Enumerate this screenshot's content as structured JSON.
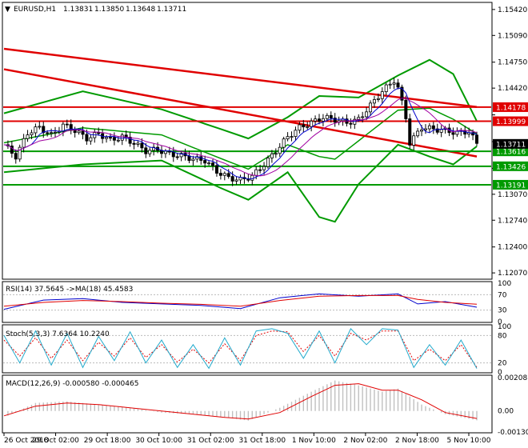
{
  "header": {
    "menu_glyph": "▼",
    "symbol": "EURUSD,H1",
    "open": "1.13831",
    "high": "1.13850",
    "low": "1.13648",
    "close": "1.13711"
  },
  "colors": {
    "price_level": "#e00000",
    "support_level": "#009a00",
    "bollinger": "#009a00",
    "trendline": "#e00000",
    "ma_fast": "#0000cc",
    "ma_mid": "#a000a0",
    "rsi_line": "#0000cc",
    "rsi_ma": "#e00000",
    "stoch_main": "#22aacc",
    "stoch_signal": "#e00000",
    "macd_hist": "#c0c0c0",
    "macd_signal": "#e00000",
    "current_price_box": "#000000"
  },
  "chart_data": [
    {
      "type": "candlestick",
      "panel": "main",
      "symbol": "EURUSD",
      "timeframe": "H1",
      "ylim": [
        1.12,
        1.155
      ],
      "y_ticks": [
        "1.15420",
        "1.15090",
        "1.14750",
        "1.14420",
        "1.14080",
        "1.13740",
        "1.13400",
        "1.13070",
        "1.12740",
        "1.12400",
        "1.12070"
      ],
      "x_ticks": [
        "26 Oct 2018",
        "29 Oct 02:00",
        "29 Oct 18:00",
        "30 Oct 10:00",
        "31 Oct 02:00",
        "31 Oct 18:00",
        "1 Nov 10:00",
        "2 Nov 02:00",
        "2 Nov 18:00",
        "5 Nov 10:00"
      ],
      "price_levels": [
        {
          "value": "1.14178",
          "kind": "resistance"
        },
        {
          "value": "1.13999",
          "kind": "resistance"
        },
        {
          "value": "1.13616",
          "kind": "support"
        },
        {
          "value": "1.13426",
          "kind": "support"
        },
        {
          "value": "1.13191",
          "kind": "support"
        }
      ],
      "current_price": "1.13711",
      "close_path": [
        [
          0,
          1.137
        ],
        [
          3,
          1.1355
        ],
        [
          6,
          1.1385
        ],
        [
          9,
          1.1392
        ],
        [
          12,
          1.1382
        ],
        [
          15,
          1.1395
        ],
        [
          18,
          1.1388
        ],
        [
          21,
          1.1378
        ],
        [
          24,
          1.1384
        ],
        [
          27,
          1.1376
        ],
        [
          30,
          1.138
        ],
        [
          33,
          1.1372
        ],
        [
          36,
          1.1362
        ],
        [
          39,
          1.1364
        ],
        [
          42,
          1.1358
        ],
        [
          45,
          1.1356
        ],
        [
          48,
          1.1352
        ],
        [
          51,
          1.135
        ],
        [
          54,
          1.1336
        ],
        [
          57,
          1.1328
        ],
        [
          60,
          1.1325
        ],
        [
          63,
          1.133
        ],
        [
          66,
          1.1345
        ],
        [
          69,
          1.1362
        ],
        [
          72,
          1.138
        ],
        [
          75,
          1.1392
        ],
        [
          78,
          1.1398
        ],
        [
          81,
          1.1405
        ],
        [
          84,
          1.1402
        ],
        [
          87,
          1.1398
        ],
        [
          90,
          1.1402
        ],
        [
          93,
          1.142
        ],
        [
          96,
          1.1438
        ],
        [
          99,
          1.1452
        ],
        [
          100,
          1.1442
        ],
        [
          102,
          1.1405
        ],
        [
          103,
          1.1372
        ],
        [
          106,
          1.1392
        ],
        [
          109,
          1.139
        ],
        [
          112,
          1.1388
        ],
        [
          115,
          1.1385
        ],
        [
          118,
          1.1387
        ],
        [
          120,
          1.1371
        ]
      ],
      "bollinger_upper": [
        [
          0,
          1.141
        ],
        [
          20,
          1.1438
        ],
        [
          40,
          1.1415
        ],
        [
          55,
          1.139
        ],
        [
          62,
          1.1378
        ],
        [
          72,
          1.1405
        ],
        [
          80,
          1.1432
        ],
        [
          90,
          1.143
        ],
        [
          100,
          1.1458
        ],
        [
          108,
          1.1478
        ],
        [
          114,
          1.146
        ],
        [
          120,
          1.14
        ]
      ],
      "bollinger_lower": [
        [
          0,
          1.1335
        ],
        [
          20,
          1.1345
        ],
        [
          40,
          1.135
        ],
        [
          55,
          1.1315
        ],
        [
          62,
          1.13
        ],
        [
          72,
          1.1335
        ],
        [
          80,
          1.1278
        ],
        [
          84,
          1.1272
        ],
        [
          90,
          1.132
        ],
        [
          100,
          1.137
        ],
        [
          108,
          1.1355
        ],
        [
          114,
          1.1345
        ],
        [
          120,
          1.1368
        ]
      ],
      "trendlines": [
        {
          "from": [
            0,
            1.1492
          ],
          "to": [
            120,
            1.1418
          ]
        },
        {
          "from": [
            0,
            1.1466
          ],
          "to": [
            120,
            1.1355
          ]
        }
      ]
    },
    {
      "type": "line",
      "panel": "rsi",
      "label": "RSI(14) 37.5645 ->MA(18) 45.4583",
      "y_ticks": [
        "100",
        "70",
        "30",
        "0"
      ],
      "ylim": [
        0,
        100
      ],
      "series": [
        {
          "name": "RSI(14)",
          "values": [
            [
              0,
              32
            ],
            [
              10,
              56
            ],
            [
              20,
              60
            ],
            [
              30,
              50
            ],
            [
              40,
              46
            ],
            [
              50,
              42
            ],
            [
              60,
              34
            ],
            [
              70,
              62
            ],
            [
              80,
              72
            ],
            [
              90,
              66
            ],
            [
              100,
              72
            ],
            [
              105,
              46
            ],
            [
              112,
              52
            ],
            [
              120,
              37.56
            ]
          ]
        },
        {
          "name": "MA(18)",
          "values": [
            [
              0,
              40
            ],
            [
              10,
              50
            ],
            [
              20,
              55
            ],
            [
              30,
              52
            ],
            [
              40,
              48
            ],
            [
              50,
              45
            ],
            [
              60,
              40
            ],
            [
              70,
              55
            ],
            [
              80,
              66
            ],
            [
              90,
              68
            ],
            [
              100,
              68
            ],
            [
              105,
              58
            ],
            [
              112,
              50
            ],
            [
              120,
              45.46
            ]
          ]
        }
      ]
    },
    {
      "type": "line",
      "panel": "stochastic",
      "label": "Stoch(5,3,3) 7.6364 10.2240",
      "y_ticks": [
        "100",
        "80",
        "20",
        "0"
      ],
      "ylim": [
        0,
        100
      ],
      "series": [
        {
          "name": "Stoch main",
          "values": [
            [
              0,
              80
            ],
            [
              4,
              20
            ],
            [
              8,
              90
            ],
            [
              12,
              15
            ],
            [
              16,
              85
            ],
            [
              20,
              10
            ],
            [
              24,
              78
            ],
            [
              28,
              25
            ],
            [
              32,
              88
            ],
            [
              36,
              20
            ],
            [
              40,
              70
            ],
            [
              44,
              10
            ],
            [
              48,
              60
            ],
            [
              52,
              8
            ],
            [
              56,
              75
            ],
            [
              60,
              15
            ],
            [
              64,
              90
            ],
            [
              68,
              95
            ],
            [
              72,
              85
            ],
            [
              76,
              30
            ],
            [
              80,
              90
            ],
            [
              84,
              20
            ],
            [
              88,
              95
            ],
            [
              92,
              60
            ],
            [
              96,
              95
            ],
            [
              100,
              92
            ],
            [
              104,
              10
            ],
            [
              108,
              60
            ],
            [
              112,
              15
            ],
            [
              116,
              70
            ],
            [
              120,
              7.64
            ]
          ]
        },
        {
          "name": "Stoch signal",
          "values": [
            [
              0,
              70
            ],
            [
              4,
              35
            ],
            [
              8,
              75
            ],
            [
              12,
              30
            ],
            [
              16,
              70
            ],
            [
              20,
              25
            ],
            [
              24,
              65
            ],
            [
              28,
              35
            ],
            [
              32,
              75
            ],
            [
              36,
              32
            ],
            [
              40,
              60
            ],
            [
              44,
              22
            ],
            [
              48,
              50
            ],
            [
              52,
              20
            ],
            [
              56,
              62
            ],
            [
              60,
              25
            ],
            [
              64,
              80
            ],
            [
              68,
              90
            ],
            [
              72,
              88
            ],
            [
              76,
              45
            ],
            [
              80,
              80
            ],
            [
              84,
              35
            ],
            [
              88,
              85
            ],
            [
              92,
              70
            ],
            [
              96,
              90
            ],
            [
              100,
              90
            ],
            [
              104,
              25
            ],
            [
              108,
              50
            ],
            [
              112,
              25
            ],
            [
              116,
              60
            ],
            [
              120,
              10.22
            ]
          ]
        }
      ]
    },
    {
      "type": "bar",
      "panel": "macd",
      "label": "MACD(12,26,9) -0.000580 -0.000465",
      "y_ticks": [
        "0.00208",
        "0.00",
        "-0.001309"
      ],
      "ylim": [
        -0.001309,
        0.00208
      ],
      "histogram": [
        [
          0,
          -0.0004
        ],
        [
          8,
          0.0005
        ],
        [
          16,
          0.0006
        ],
        [
          24,
          0.0004
        ],
        [
          32,
          0.0002
        ],
        [
          40,
          -0.0001
        ],
        [
          48,
          -0.0002
        ],
        [
          56,
          -0.0004
        ],
        [
          62,
          -0.0006
        ],
        [
          70,
          0.0002
        ],
        [
          78,
          0.0012
        ],
        [
          84,
          0.0019
        ],
        [
          90,
          0.0016
        ],
        [
          96,
          0.0012
        ],
        [
          100,
          0.0014
        ],
        [
          106,
          0.0004
        ],
        [
          112,
          -0.0002
        ],
        [
          120,
          -0.00058
        ]
      ],
      "signal": [
        [
          0,
          -0.0003
        ],
        [
          8,
          0.0003
        ],
        [
          16,
          0.0005
        ],
        [
          24,
          0.0004
        ],
        [
          32,
          0.0002
        ],
        [
          40,
          0.0
        ],
        [
          48,
          -0.0002
        ],
        [
          56,
          -0.0004
        ],
        [
          62,
          -0.0005
        ],
        [
          70,
          -0.0001
        ],
        [
          78,
          0.0009
        ],
        [
          84,
          0.0016
        ],
        [
          90,
          0.0017
        ],
        [
          96,
          0.0013
        ],
        [
          100,
          0.0013
        ],
        [
          106,
          0.0007
        ],
        [
          112,
          -0.0001
        ],
        [
          120,
          -0.000465
        ]
      ]
    }
  ]
}
